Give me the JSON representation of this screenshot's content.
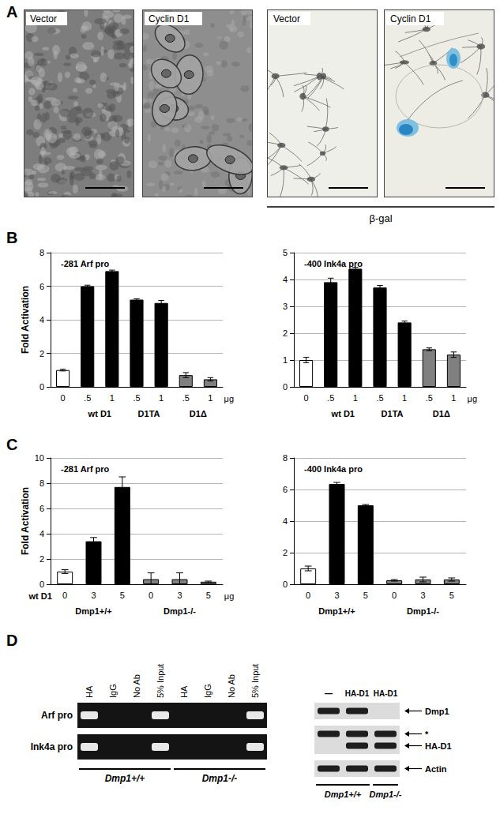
{
  "panel_labels": [
    "A",
    "B",
    "C",
    "D"
  ],
  "panel_a": {
    "phase_images": [
      "Vector",
      "Cyclin D1"
    ],
    "stain_images": [
      "Vector",
      "Cyclin D1"
    ],
    "stain_label": "β-gal"
  },
  "chart_data": [
    {
      "panel": "B",
      "type": "bar",
      "title": "-281 Arf pro",
      "y_label": "Fold Activation",
      "categories": [
        "0",
        ".5",
        "1",
        ".5",
        "1",
        ".5",
        "1"
      ],
      "groups": [
        null,
        "wt D1",
        "wt D1",
        "D1TA",
        "D1TA",
        "D1Δ",
        "D1Δ"
      ],
      "x_suffix": "μg",
      "values": [
        1.0,
        6.0,
        6.9,
        5.2,
        5.0,
        0.7,
        0.45
      ],
      "errors": [
        0.05,
        0.06,
        0.06,
        0.05,
        0.15,
        0.15,
        0.1
      ],
      "colors": [
        "#ffffff",
        "#000000",
        "#000000",
        "#000000",
        "#000000",
        "#808080",
        "#808080"
      ],
      "ylim": [
        0,
        8
      ],
      "yticks": [
        0,
        2,
        4,
        6,
        8
      ],
      "grid": true
    },
    {
      "panel": "B",
      "type": "bar",
      "title": "-400 Ink4a pro",
      "categories": [
        "0",
        ".5",
        "1",
        ".5",
        "1",
        ".5",
        "1"
      ],
      "groups": [
        null,
        "wt D1",
        "wt D1",
        "D1TA",
        "D1TA",
        "D1Δ",
        "D1Δ"
      ],
      "x_suffix": "μg",
      "values": [
        1.0,
        3.9,
        4.4,
        3.7,
        2.4,
        1.4,
        1.2
      ],
      "errors": [
        0.1,
        0.15,
        0.05,
        0.08,
        0.05,
        0.05,
        0.1
      ],
      "colors": [
        "#ffffff",
        "#000000",
        "#000000",
        "#000000",
        "#000000",
        "#808080",
        "#808080"
      ],
      "ylim": [
        0,
        5
      ],
      "yticks": [
        0,
        1,
        2,
        3,
        4,
        5
      ],
      "grid": true
    },
    {
      "panel": "C",
      "type": "bar",
      "title": "-281 Arf pro",
      "y_label": "Fold Activation",
      "categories": [
        "0",
        "3",
        "5",
        "0",
        "3",
        "5"
      ],
      "groups": [
        "Dmp1+/+",
        "Dmp1+/+",
        "Dmp1+/+",
        "Dmp1-/-",
        "Dmp1-/-",
        "Dmp1-/-"
      ],
      "x_prefix": "wt D1",
      "x_suffix": "μg",
      "values": [
        1.0,
        3.4,
        7.7,
        0.4,
        0.4,
        0.2
      ],
      "errors": [
        0.15,
        0.3,
        0.8,
        0.5,
        0.5,
        0.05
      ],
      "colors": [
        "#ffffff",
        "#000000",
        "#000000",
        "#808080",
        "#808080",
        "#808080"
      ],
      "ylim": [
        0,
        10
      ],
      "yticks": [
        0,
        2,
        4,
        6,
        8,
        10
      ],
      "grid": true
    },
    {
      "panel": "C",
      "type": "bar",
      "title": "-400 Ink4a pro",
      "categories": [
        "0",
        "3",
        "5",
        "0",
        "3",
        "5"
      ],
      "groups": [
        "Dmp1+/+",
        "Dmp1+/+",
        "Dmp1+/+",
        "Dmp1-/-",
        "Dmp1-/-",
        "Dmp1-/-"
      ],
      "values": [
        1.0,
        6.35,
        5.0,
        0.25,
        0.3,
        0.3
      ],
      "errors": [
        0.15,
        0.1,
        0.05,
        0.05,
        0.15,
        0.1
      ],
      "colors": [
        "#ffffff",
        "#000000",
        "#000000",
        "#808080",
        "#808080",
        "#808080"
      ],
      "ylim": [
        0,
        8
      ],
      "yticks": [
        0,
        2,
        4,
        6,
        8
      ],
      "grid": true
    }
  ],
  "panel_d": {
    "chip": {
      "columns": [
        "HA",
        "IgG",
        "No Ab",
        "5% Input",
        "HA",
        "IgG",
        "No Ab",
        "5% Input"
      ],
      "column_groups": [
        "Dmp1+/+",
        "Dmp1+/+",
        "Dmp1+/+",
        "Dmp1+/+",
        "Dmp1-/-",
        "Dmp1-/-",
        "Dmp1-/-",
        "Dmp1-/-"
      ],
      "rows": [
        {
          "label": "Arf pro",
          "bands": [
            1,
            0,
            0,
            1,
            0,
            0,
            0,
            1
          ]
        },
        {
          "label": "Ink4a pro",
          "bands": [
            1,
            0,
            0,
            1,
            0,
            0,
            0,
            1
          ]
        }
      ]
    },
    "western": {
      "columns": [
        "—",
        "HA-D1",
        "HA-D1"
      ],
      "column_groups": [
        "Dmp1+/+",
        "Dmp1+/+",
        "Dmp1-/-"
      ],
      "strips": [
        {
          "labels": [
            "Dmp1"
          ],
          "bands": [
            [
              1,
              1,
              0
            ]
          ]
        },
        {
          "labels": [
            "*",
            "HA-D1"
          ],
          "bands": [
            [
              1,
              1,
              1
            ],
            [
              0,
              1,
              1
            ]
          ]
        },
        {
          "labels": [
            "Actin"
          ],
          "bands": [
            [
              1,
              1,
              1
            ]
          ]
        }
      ]
    }
  }
}
